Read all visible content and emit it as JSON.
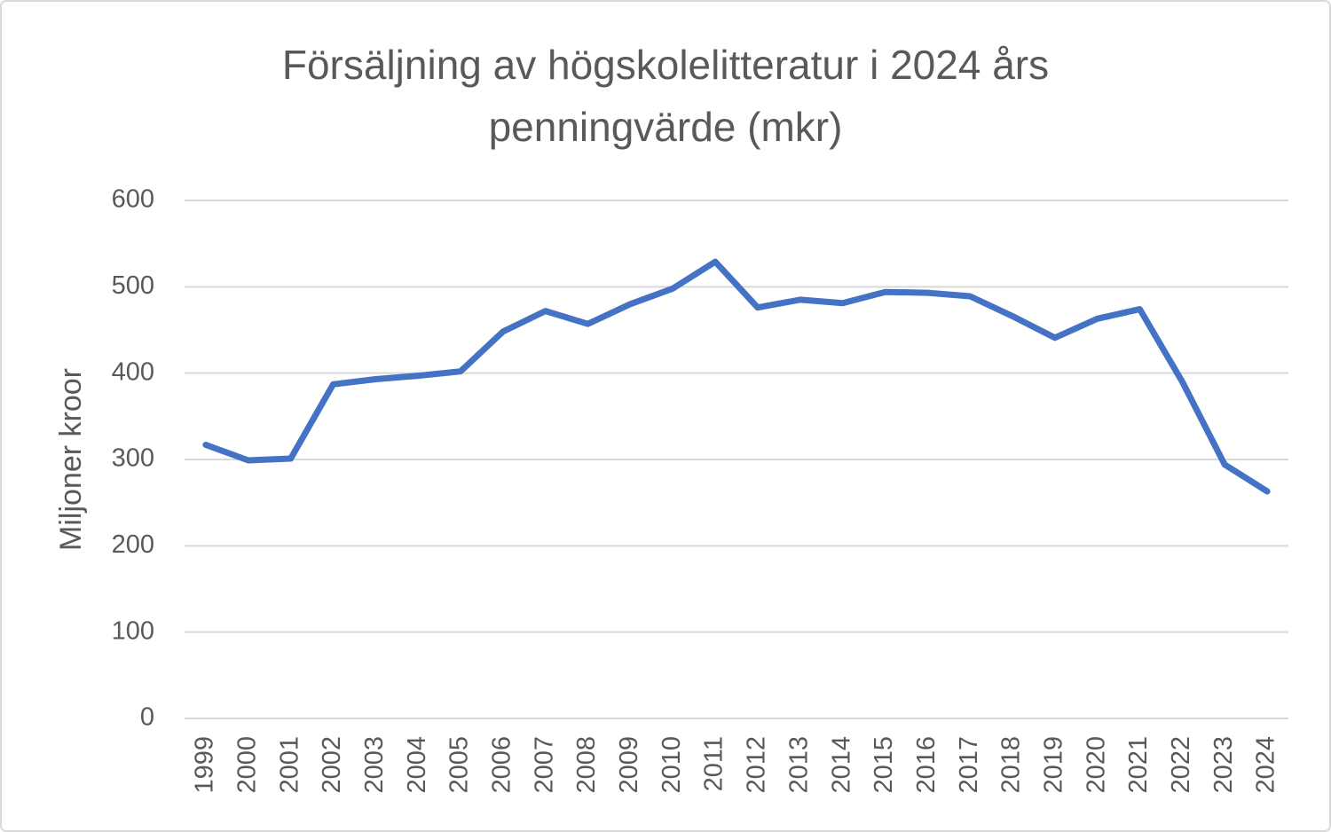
{
  "chart_data": {
    "type": "line",
    "title": "Försäljning av högskolelitteratur i 2024 års penningvärde (mkr)",
    "y_label": "Miljoner kroor",
    "categories": [
      "1999",
      "2000",
      "2001",
      "2002",
      "2003",
      "2004",
      "2005",
      "2006",
      "2007",
      "2008",
      "2009",
      "2010",
      "2011",
      "2012",
      "2013",
      "2014",
      "2015",
      "2016",
      "2017",
      "2018",
      "2019",
      "2020",
      "2021",
      "2022",
      "2023",
      "2024"
    ],
    "series": [
      {
        "name": "Försäljning",
        "color": "#4472c4",
        "values": [
          317,
          299,
          301,
          387,
          393,
          397,
          402,
          448,
          472,
          457,
          480,
          498,
          529,
          476,
          485,
          481,
          494,
          493,
          489,
          466,
          441,
          463,
          474,
          390,
          294,
          263
        ]
      }
    ],
    "ylim": [
      0,
      600
    ],
    "yticks": [
      0,
      100,
      200,
      300,
      400,
      500,
      600
    ],
    "grid": true
  }
}
